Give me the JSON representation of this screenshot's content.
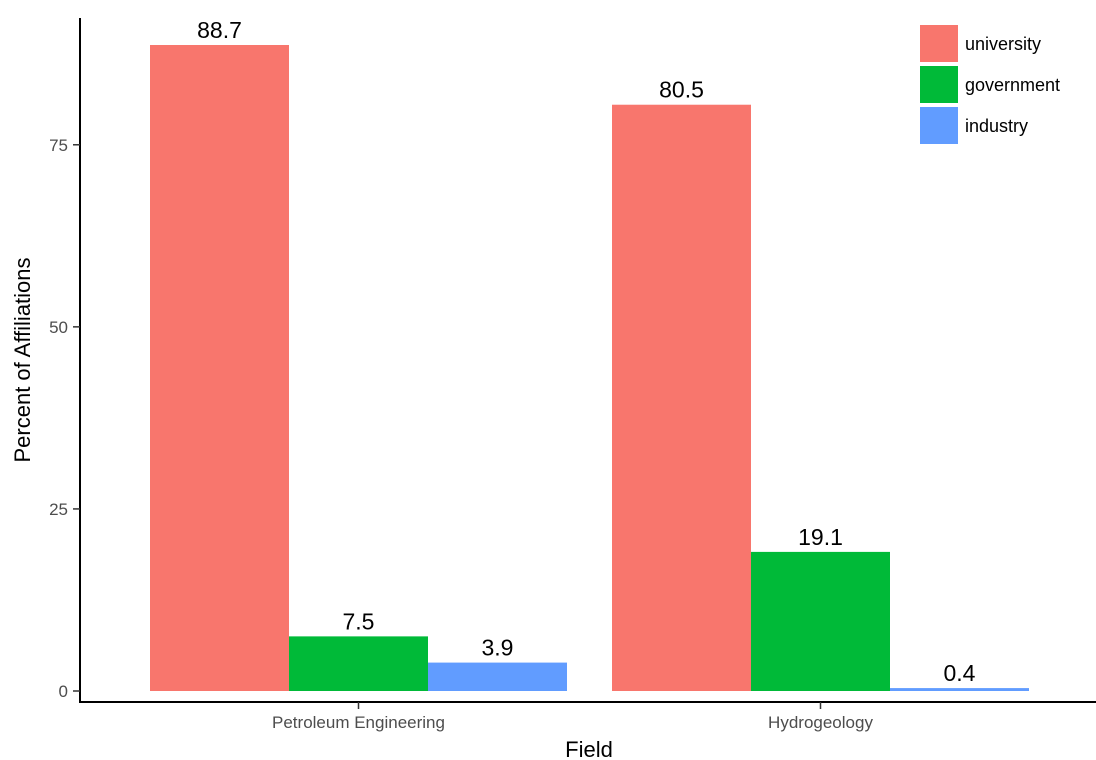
{
  "chart_data": {
    "type": "bar",
    "categories": [
      "Petroleum Engineering",
      "Hydrogeology"
    ],
    "series": [
      {
        "name": "university",
        "color": "#F8766D",
        "values": [
          88.7,
          80.5
        ],
        "labels": [
          "88.7",
          "80.5"
        ]
      },
      {
        "name": "government",
        "color": "#00BA38",
        "values": [
          7.5,
          19.1
        ],
        "labels": [
          "7.5",
          "19.1"
        ]
      },
      {
        "name": "industry",
        "color": "#619CFF",
        "values": [
          3.9,
          0.4
        ],
        "labels": [
          "3.9",
          "0.4"
        ]
      }
    ],
    "xlabel": "Field",
    "ylabel": "Percent of Affiliations",
    "yticks": [
      0,
      25,
      50,
      75
    ],
    "ytick_labels": [
      "0",
      "25",
      "50",
      "75"
    ],
    "ylim": [
      0,
      93.2
    ],
    "grid": false,
    "legend_position": "top-right"
  }
}
